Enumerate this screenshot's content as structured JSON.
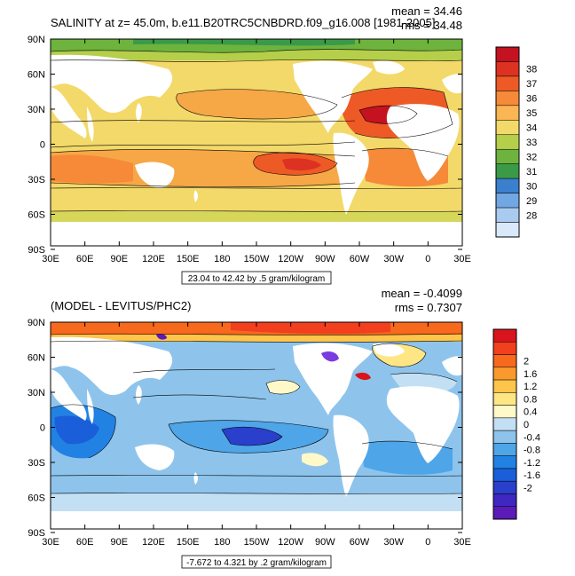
{
  "chart_data": [
    {
      "type": "heatmap",
      "title": "SALINITY at z=  45.0m, b.e11.B20TRC5CNBDRD.f09_g16.008 [1981-2005]",
      "stats": [
        "mean = 34.46",
        "rms = 34.48"
      ],
      "x_ticks": [
        "30E",
        "60E",
        "90E",
        "120E",
        "150E",
        "180",
        "150W",
        "120W",
        "90W",
        "60W",
        "30W",
        "0",
        "30E"
      ],
      "y_ticks": [
        "90N",
        "60N",
        "30N",
        "0",
        "30S",
        "60S",
        "90S"
      ],
      "xlim": [
        30,
        390
      ],
      "ylim": [
        -90,
        90
      ],
      "range_label": "23.04 to 42.42 by .5 gram/kilogram",
      "colorbar": {
        "labels": [
          "38",
          "37",
          "36",
          "35",
          "34",
          "33",
          "32",
          "31",
          "30",
          "29",
          "28"
        ],
        "colors": [
          "#c41220",
          "#dd3222",
          "#ee5a26",
          "#f68a38",
          "#f9b652",
          "#f3d969",
          "#b5cf4a",
          "#6db33d",
          "#3a9a48",
          "#3b7fcf",
          "#71a7e2",
          "#a9cbf0",
          "#d9e9fa"
        ]
      }
    },
    {
      "type": "heatmap",
      "title": "(MODEL - LEVITUS/PHC2)",
      "stats": [
        "mean = -0.4099",
        "rms = 0.7307"
      ],
      "x_ticks": [
        "30E",
        "60E",
        "90E",
        "120E",
        "150E",
        "180",
        "150W",
        "120W",
        "90W",
        "60W",
        "30W",
        "0",
        "30E"
      ],
      "y_ticks": [
        "90N",
        "60N",
        "30N",
        "0",
        "30S",
        "60S",
        "90S"
      ],
      "xlim": [
        30,
        390
      ],
      "ylim": [
        -90,
        90
      ],
      "range_label": "-7.672 to 4.321 by .2 gram/kilogram",
      "colorbar": {
        "labels": [
          "2",
          "1.6",
          "1.2",
          "0.8",
          "0.4",
          "0",
          "-0.4",
          "-0.8",
          "-1.2",
          "-1.6",
          "-2"
        ],
        "colors": [
          "#d9141c",
          "#f23f1e",
          "#f7691d",
          "#fb9a2c",
          "#fdc54a",
          "#ffe684",
          "#fff8c8",
          "#c3dff3",
          "#8ec4ec",
          "#4ea5e8",
          "#2282e3",
          "#1a5fd9",
          "#2a3fcc",
          "#3f27c2",
          "#5a1bb8"
        ]
      }
    }
  ]
}
